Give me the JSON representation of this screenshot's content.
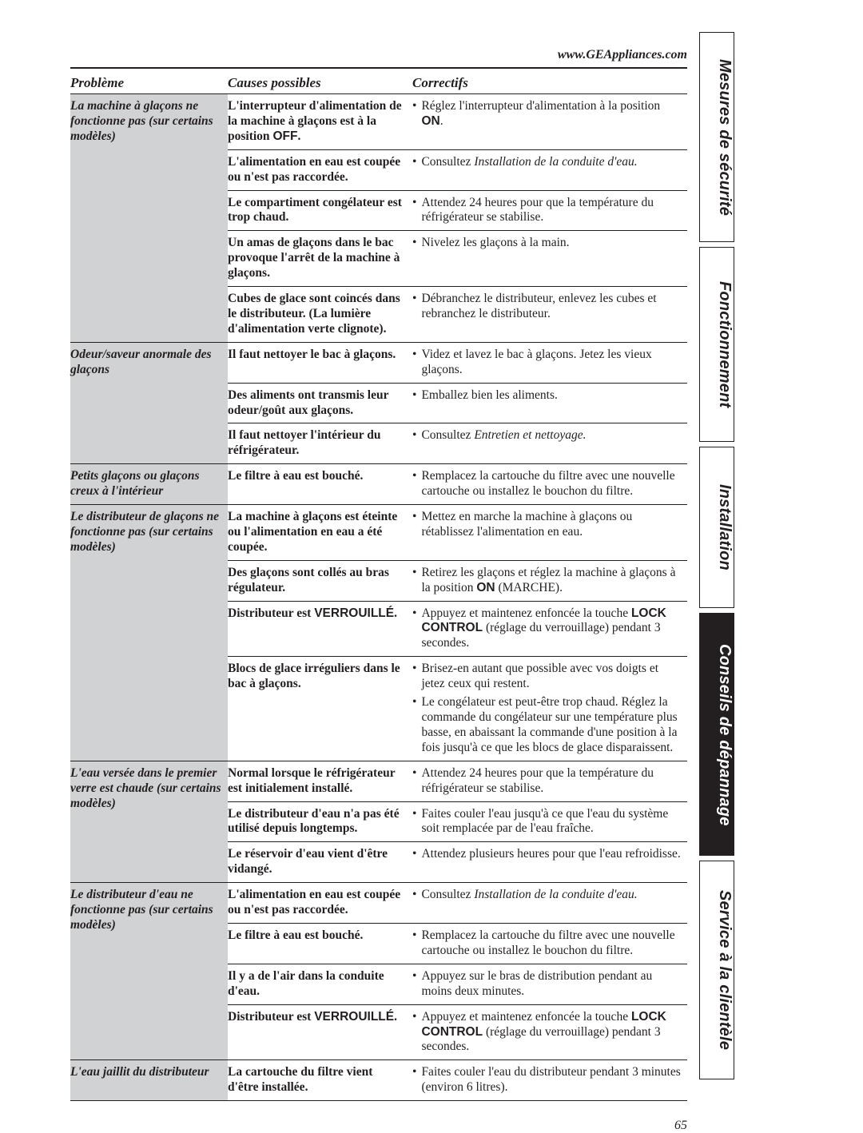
{
  "header": {
    "url": "www.GEAppliances.com"
  },
  "columns": {
    "c1": "Problème",
    "c2": "Causes possibles",
    "c3": "Correctifs"
  },
  "page_number": "65",
  "tabs": {
    "t1": "Mesures de sécurité",
    "t2": "Fonctionnement",
    "t3": "Installation",
    "t4": "Conseils de dépannage",
    "t5": "Service à la clientèle"
  },
  "groups": [
    {
      "problem": "La machine à glaçons ne fonctionne pas (sur certains modèles)",
      "rows": [
        {
          "cause_parts": [
            {
              "t": "L'interrupteur d'alimentation de la machine à glaçons est à la position "
            },
            {
              "t": "OFF",
              "cls": "sans-bold"
            },
            {
              "t": "."
            }
          ],
          "fixes": [
            [
              {
                "t": "Réglez l'interrupteur d'alimentation à la position "
              },
              {
                "t": "ON",
                "cls": "sans-bold"
              },
              {
                "t": "."
              }
            ]
          ]
        },
        {
          "cause_parts": [
            {
              "t": "L'alimentation en eau est coupée ou n'est pas raccordée."
            }
          ],
          "fixes": [
            [
              {
                "t": "Consultez "
              },
              {
                "t": "Installation de la conduite d'eau.",
                "cls": "ital"
              }
            ]
          ]
        },
        {
          "cause_parts": [
            {
              "t": "Le compartiment congélateur est trop chaud."
            }
          ],
          "fixes": [
            [
              {
                "t": "Attendez 24 heures pour que la température du réfrigérateur se stabilise."
              }
            ]
          ]
        },
        {
          "cause_parts": [
            {
              "t": "Un amas de glaçons dans le bac provoque l'arrêt de la machine à glaçons."
            }
          ],
          "fixes": [
            [
              {
                "t": "Nivelez les glaçons à la main."
              }
            ]
          ]
        },
        {
          "cause_parts": [
            {
              "t": "Cubes de glace sont coincés dans le distributeur. (La lumière d'alimentation verte clignote)."
            }
          ],
          "fixes": [
            [
              {
                "t": "Débranchez le distributeur, enlevez les cubes et rebranchez le distributeur."
              }
            ]
          ]
        }
      ]
    },
    {
      "problem": "Odeur/saveur anormale des glaçons",
      "rows": [
        {
          "cause_parts": [
            {
              "t": "Il faut nettoyer le bac à glaçons."
            }
          ],
          "fixes": [
            [
              {
                "t": "Videz et lavez le bac à glaçons. Jetez les vieux glaçons."
              }
            ]
          ]
        },
        {
          "cause_parts": [
            {
              "t": "Des aliments ont transmis leur odeur/goût aux glaçons."
            }
          ],
          "fixes": [
            [
              {
                "t": "Emballez bien les aliments."
              }
            ]
          ]
        },
        {
          "cause_parts": [
            {
              "t": "Il faut nettoyer l'intérieur du réfrigérateur."
            }
          ],
          "fixes": [
            [
              {
                "t": "Consultez "
              },
              {
                "t": "Entretien et nettoyage.",
                "cls": "ital"
              }
            ]
          ]
        }
      ]
    },
    {
      "problem": "Petits glaçons ou glaçons creux à l'intérieur",
      "rows": [
        {
          "cause_parts": [
            {
              "t": "Le filtre à eau est bouché."
            }
          ],
          "fixes": [
            [
              {
                "t": "Remplacez la cartouche du filtre avec une nouvelle cartouche ou installez le bouchon du filtre."
              }
            ]
          ]
        }
      ]
    },
    {
      "problem": "Le distributeur de glaçons ne fonctionne pas (sur certains modèles)",
      "rows": [
        {
          "cause_parts": [
            {
              "t": "La machine à glaçons est éteinte ou l'alimentation en eau a été coupée."
            }
          ],
          "fixes": [
            [
              {
                "t": "Mettez en marche la machine à glaçons ou rétablissez l'alimentation en eau."
              }
            ]
          ]
        },
        {
          "cause_parts": [
            {
              "t": "Des glaçons sont collés au bras régulateur."
            }
          ],
          "fixes": [
            [
              {
                "t": "Retirez les glaçons et réglez la machine à glaçons à la position "
              },
              {
                "t": "ON",
                "cls": "sans-bold"
              },
              {
                "t": " (MARCHE)."
              }
            ]
          ]
        },
        {
          "cause_parts": [
            {
              "t": "Distributeur est "
            },
            {
              "t": "VERROUILLÉ",
              "cls": "sans-bold"
            },
            {
              "t": "."
            }
          ],
          "fixes": [
            [
              {
                "t": "Appuyez et maintenez enfoncée la touche "
              },
              {
                "t": "LOCK CONTROL",
                "cls": "sans-bold"
              },
              {
                "t": " (réglage du verrouillage) pendant 3 secondes."
              }
            ]
          ]
        },
        {
          "cause_parts": [
            {
              "t": "Blocs de glace irréguliers dans le bac à glaçons."
            }
          ],
          "fixes": [
            [
              {
                "t": "Brisez-en autant que possible avec vos doigts et jetez ceux qui restent."
              }
            ],
            [
              {
                "t": "Le congélateur est peut-être trop chaud. Réglez la commande du congélateur sur une température plus basse, en abaissant la commande d'une position à la fois jusqu'à ce que les blocs de glace disparaissent."
              }
            ]
          ]
        }
      ]
    },
    {
      "problem": "L'eau versée dans le premier verre est chaude (sur certains modèles)",
      "rows": [
        {
          "cause_parts": [
            {
              "t": "Normal lorsque le réfrigérateur est initialement installé."
            }
          ],
          "fixes": [
            [
              {
                "t": "Attendez 24 heures pour que la température du réfrigérateur se stabilise."
              }
            ]
          ]
        },
        {
          "cause_parts": [
            {
              "t": "Le distributeur d'eau n'a pas été utilisé depuis longtemps."
            }
          ],
          "fixes": [
            [
              {
                "t": "Faites couler l'eau jusqu'à ce que l'eau du système soit remplacée par de l'eau fraîche."
              }
            ]
          ]
        },
        {
          "cause_parts": [
            {
              "t": "Le réservoir d'eau vient d'être vidangé."
            }
          ],
          "fixes": [
            [
              {
                "t": "Attendez plusieurs heures pour que l'eau refroidisse."
              }
            ]
          ]
        }
      ]
    },
    {
      "problem": "Le distributeur d'eau ne fonctionne pas (sur certains modèles)",
      "rows": [
        {
          "cause_parts": [
            {
              "t": "L'alimentation en eau est coupée ou n'est pas raccordée."
            }
          ],
          "fixes": [
            [
              {
                "t": "Consultez "
              },
              {
                "t": "Installation de la conduite d'eau.",
                "cls": "ital"
              }
            ]
          ]
        },
        {
          "cause_parts": [
            {
              "t": "Le filtre à eau est bouché."
            }
          ],
          "fixes": [
            [
              {
                "t": "Remplacez la cartouche du filtre avec une nouvelle cartouche ou installez le bouchon du filtre."
              }
            ]
          ]
        },
        {
          "cause_parts": [
            {
              "t": "Il y a de l'air dans la conduite d'eau."
            }
          ],
          "fixes": [
            [
              {
                "t": "Appuyez sur le bras de distribution pendant au moins deux minutes."
              }
            ]
          ]
        },
        {
          "cause_parts": [
            {
              "t": "Distributeur est "
            },
            {
              "t": "VERROUILLÉ",
              "cls": "sans-bold"
            },
            {
              "t": "."
            }
          ],
          "fixes": [
            [
              {
                "t": "Appuyez et maintenez enfoncée la touche "
              },
              {
                "t": "LOCK CONTROL",
                "cls": "sans-bold"
              },
              {
                "t": " (réglage du verrouillage) pendant 3 secondes."
              }
            ]
          ]
        }
      ]
    },
    {
      "problem": "L'eau jaillit du distributeur",
      "rows": [
        {
          "cause_parts": [
            {
              "t": "La cartouche du filtre vient d'être installée."
            }
          ],
          "fixes": [
            [
              {
                "t": "Faites couler l'eau du distributeur pendant 3 minutes (environ 6 litres)."
              }
            ]
          ]
        }
      ]
    }
  ]
}
